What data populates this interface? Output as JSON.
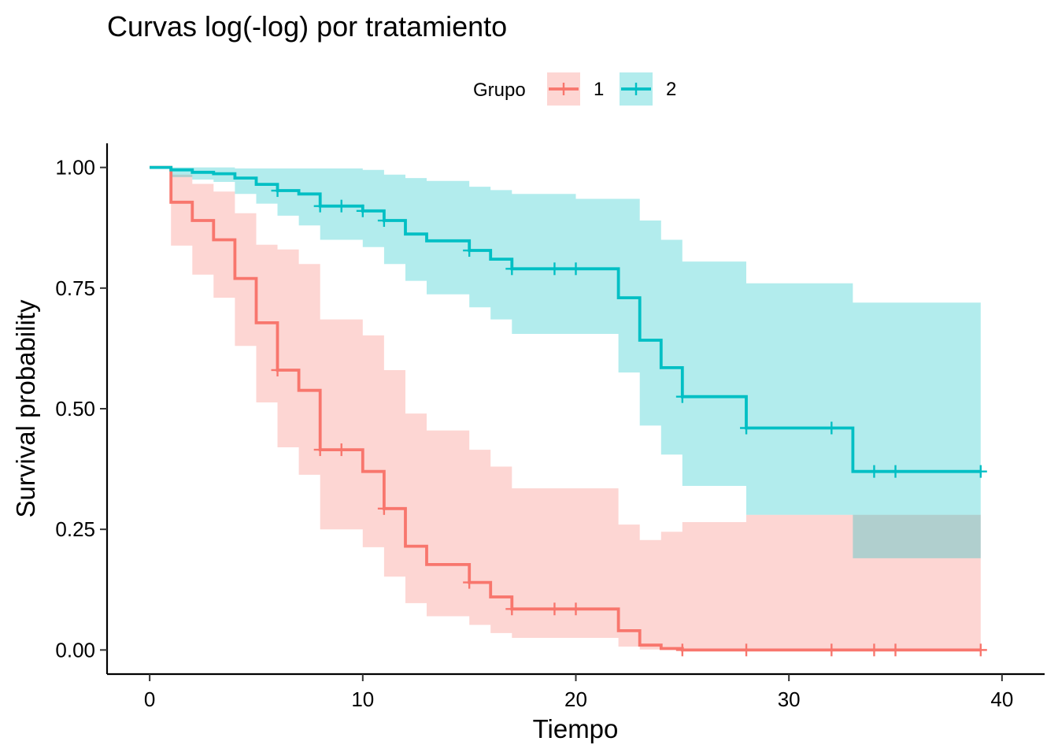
{
  "chart_data": {
    "type": "line",
    "subtype": "kaplan-meier step survival curves with confidence bands",
    "title": "Curvas log(-log) por tratamiento",
    "xlabel": "Tiempo",
    "ylabel": "Survival probability",
    "xlim": [
      -2,
      42
    ],
    "ylim": [
      -0.05,
      1.05
    ],
    "x_ticks": [
      0,
      10,
      20,
      30,
      40
    ],
    "x_tick_labels": [
      "0",
      "10",
      "20",
      "30",
      "40"
    ],
    "y_ticks": [
      0,
      0.25,
      0.5,
      0.75,
      1
    ],
    "y_tick_labels": [
      "0.00",
      "0.25",
      "0.50",
      "0.75",
      "1.00"
    ],
    "grid": false,
    "legend": {
      "title": "Grupo",
      "position": "top",
      "entries": [
        "1",
        "2"
      ]
    },
    "series": [
      {
        "name": "1",
        "color": "#F8766D",
        "band_color": "#F8766D",
        "steps": [
          [
            0,
            1.0
          ],
          [
            1,
            0.928
          ],
          [
            2,
            0.89
          ],
          [
            3,
            0.85
          ],
          [
            4,
            0.77
          ],
          [
            5,
            0.678
          ],
          [
            6,
            0.58
          ],
          [
            7,
            0.538
          ],
          [
            8,
            0.415
          ],
          [
            10,
            0.37
          ],
          [
            11,
            0.293
          ],
          [
            12,
            0.215
          ],
          [
            13,
            0.177
          ],
          [
            15,
            0.14
          ],
          [
            16,
            0.11
          ],
          [
            17,
            0.085
          ],
          [
            22,
            0.04
          ],
          [
            23,
            0.01
          ],
          [
            24,
            0.003
          ],
          [
            25,
            0.0
          ],
          [
            39,
            0.0
          ]
        ],
        "lower": [
          [
            0,
            1.0
          ],
          [
            1,
            0.838
          ],
          [
            2,
            0.778
          ],
          [
            3,
            0.73
          ],
          [
            4,
            0.63
          ],
          [
            5,
            0.513
          ],
          [
            6,
            0.42
          ],
          [
            7,
            0.363
          ],
          [
            8,
            0.25
          ],
          [
            10,
            0.213
          ],
          [
            11,
            0.152
          ],
          [
            12,
            0.097
          ],
          [
            13,
            0.07
          ],
          [
            15,
            0.052
          ],
          [
            16,
            0.035
          ],
          [
            17,
            0.025
          ],
          [
            22,
            0.007
          ],
          [
            23,
            0.001
          ],
          [
            24,
            0.0
          ],
          [
            39,
            0.0
          ]
        ],
        "upper": [
          [
            0,
            1.0
          ],
          [
            1,
            0.985
          ],
          [
            2,
            0.966
          ],
          [
            3,
            0.95
          ],
          [
            4,
            0.905
          ],
          [
            5,
            0.84
          ],
          [
            6,
            0.83
          ],
          [
            7,
            0.8
          ],
          [
            8,
            0.685
          ],
          [
            10,
            0.652
          ],
          [
            11,
            0.58
          ],
          [
            12,
            0.49
          ],
          [
            13,
            0.455
          ],
          [
            15,
            0.415
          ],
          [
            16,
            0.38
          ],
          [
            17,
            0.335
          ],
          [
            22,
            0.26
          ],
          [
            23,
            0.228
          ],
          [
            24,
            0.245
          ],
          [
            25,
            0.265
          ],
          [
            28,
            0.28
          ],
          [
            39,
            0.28
          ]
        ],
        "censor_times": [
          6,
          8,
          9,
          11,
          15,
          17,
          19,
          20,
          25,
          28,
          32,
          34,
          35,
          39
        ]
      },
      {
        "name": "2",
        "color": "#00BFC4",
        "band_color": "#00BFC4",
        "steps": [
          [
            0,
            1.0
          ],
          [
            1,
            0.995
          ],
          [
            2,
            0.99
          ],
          [
            3,
            0.987
          ],
          [
            4,
            0.978
          ],
          [
            5,
            0.965
          ],
          [
            6,
            0.952
          ],
          [
            7,
            0.945
          ],
          [
            8,
            0.92
          ],
          [
            10,
            0.91
          ],
          [
            11,
            0.89
          ],
          [
            12,
            0.862
          ],
          [
            13,
            0.848
          ],
          [
            15,
            0.828
          ],
          [
            16,
            0.81
          ],
          [
            17,
            0.79
          ],
          [
            22,
            0.73
          ],
          [
            23,
            0.642
          ],
          [
            24,
            0.585
          ],
          [
            25,
            0.525
          ],
          [
            28,
            0.46
          ],
          [
            33,
            0.37
          ],
          [
            39,
            0.37
          ]
        ],
        "lower": [
          [
            0,
            1.0
          ],
          [
            1,
            0.98
          ],
          [
            2,
            0.975
          ],
          [
            3,
            0.97
          ],
          [
            4,
            0.945
          ],
          [
            5,
            0.925
          ],
          [
            6,
            0.9
          ],
          [
            7,
            0.88
          ],
          [
            8,
            0.85
          ],
          [
            10,
            0.835
          ],
          [
            11,
            0.8
          ],
          [
            12,
            0.765
          ],
          [
            13,
            0.737
          ],
          [
            15,
            0.71
          ],
          [
            16,
            0.685
          ],
          [
            17,
            0.655
          ],
          [
            22,
            0.575
          ],
          [
            23,
            0.465
          ],
          [
            24,
            0.405
          ],
          [
            25,
            0.34
          ],
          [
            28,
            0.28
          ],
          [
            33,
            0.19
          ],
          [
            39,
            0.19
          ]
        ],
        "upper": [
          [
            0,
            1.0
          ],
          [
            4,
            0.998
          ],
          [
            10,
            0.995
          ],
          [
            11,
            0.985
          ],
          [
            12,
            0.978
          ],
          [
            13,
            0.972
          ],
          [
            15,
            0.96
          ],
          [
            16,
            0.953
          ],
          [
            17,
            0.945
          ],
          [
            20,
            0.935
          ],
          [
            21,
            0.935
          ],
          [
            22,
            0.935
          ],
          [
            23,
            0.89
          ],
          [
            24,
            0.85
          ],
          [
            25,
            0.805
          ],
          [
            28,
            0.76
          ],
          [
            33,
            0.72
          ],
          [
            39,
            0.72
          ]
        ],
        "censor_times": [
          6,
          8,
          9,
          10,
          11,
          15,
          17,
          19,
          20,
          25,
          28,
          32,
          34,
          35,
          39
        ]
      }
    ]
  }
}
